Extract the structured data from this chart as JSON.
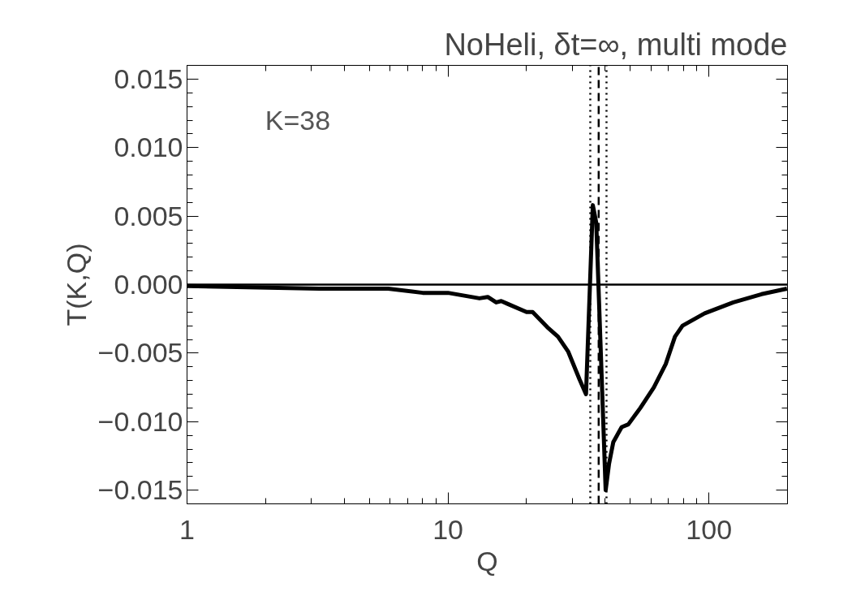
{
  "chart_data": {
    "type": "line",
    "title": "NoHeli, δt=∞, multi mode",
    "xlabel": "Q",
    "ylabel": "T(K,Q)",
    "log": "x",
    "xlim": [
      1,
      200
    ],
    "xticks": [
      1,
      10,
      100
    ],
    "ylim": [
      -0.016,
      0.016
    ],
    "yticks": [
      {
        "value": -0.015,
        "label": "−0.015"
      },
      {
        "value": -0.01,
        "label": "−0.010"
      },
      {
        "value": -0.005,
        "label": "−0.005"
      },
      {
        "value": 0,
        "label": "0.000"
      },
      {
        "value": 0.005,
        "label": "0.005"
      },
      {
        "value": 0.01,
        "label": "0.010"
      },
      {
        "value": 0.015,
        "label": "0.015"
      }
    ],
    "grid": false,
    "line_style": "solid",
    "marker": "none",
    "annotations": [
      "K=38"
    ],
    "ref_lines": [
      {
        "axis": "y",
        "value": 0,
        "line_style": "solid"
      },
      {
        "axis": "x",
        "value": 35.1,
        "line_style": "dotted"
      },
      {
        "axis": "x",
        "value": 37.8,
        "line_style": "dashed"
      },
      {
        "axis": "x",
        "value": 40.5,
        "line_style": "dotted"
      }
    ],
    "series": [
      {
        "color": "#000000",
        "x": [
          1,
          3.2,
          5.9,
          8.0,
          10,
          13.2,
          14.2,
          15.3,
          16.0,
          16.9,
          20.0,
          21.1,
          24.0,
          26.4,
          28.9,
          31.9,
          33.8,
          35.9,
          37.0,
          40.2,
          41.4,
          43.0,
          46.3,
          49.1,
          54.6,
          61.5,
          68.3,
          74.1,
          79.2,
          96.3,
          124,
          159,
          199
        ],
        "values": [
          -0.0001,
          -0.0003,
          -0.0003,
          -0.0006,
          -0.0006,
          -0.001,
          -0.0009,
          -0.0013,
          -0.0012,
          -0.0014,
          -0.002,
          -0.002,
          -0.0031,
          -0.0038,
          -0.0049,
          -0.0069,
          -0.008,
          0.0058,
          0.0045,
          -0.015,
          -0.0131,
          -0.0115,
          -0.0104,
          -0.0102,
          -0.009,
          -0.0075,
          -0.0058,
          -0.0038,
          -0.003,
          -0.0021,
          -0.0013,
          -0.0007,
          -0.0003
        ]
      }
    ]
  }
}
